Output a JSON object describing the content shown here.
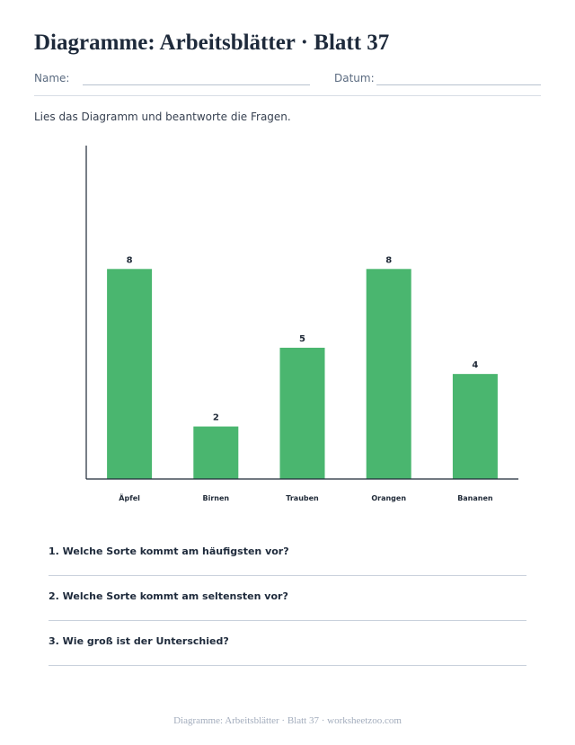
{
  "worksheet": {
    "title": "Diagramme: Arbeitsblätter · Blatt 37",
    "name_label": "Name:",
    "date_label": "Datum:",
    "instruction": "Lies das Diagramm und beantworte die Fragen."
  },
  "chart_data": {
    "type": "bar",
    "categories": [
      "Äpfel",
      "Birnen",
      "Trauben",
      "Orangen",
      "Bananen"
    ],
    "values": [
      8,
      2,
      5,
      8,
      4
    ],
    "ylim": [
      0,
      12.7
    ],
    "grid": false,
    "data_labels": true,
    "bar_color": "#4ab66f",
    "title": "",
    "xlabel": "",
    "ylabel": ""
  },
  "questions": [
    "1. Welche Sorte kommt am häufigsten vor?",
    "2. Welche Sorte kommt am seltensten vor?",
    "3. Wie groß ist der Unterschied?"
  ],
  "footer": "Diagramme: Arbeitsblätter · Blatt 37 · worksheetzoo.com"
}
